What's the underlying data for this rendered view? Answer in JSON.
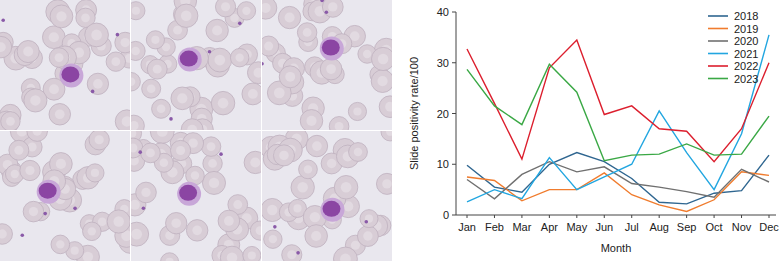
{
  "chart_data": {
    "type": "line",
    "x_label": "Month",
    "y_label": "Slide positivity rate/100",
    "categories": [
      "Jan",
      "Feb",
      "Mar",
      "Apr",
      "May",
      "Jun",
      "Jul",
      "Aug",
      "Sep",
      "Oct",
      "Nov",
      "Dec"
    ],
    "series": [
      {
        "name": "2018",
        "color": "#2f6690",
        "values": [
          9.8,
          5.5,
          4.5,
          10,
          12.3,
          10.5,
          7.2,
          2.5,
          2.2,
          4.3,
          4.8,
          11.8
        ]
      },
      {
        "name": "2019",
        "color": "#f07c2e",
        "values": [
          7.5,
          6.8,
          2.8,
          5,
          5,
          8.3,
          4,
          2,
          0.7,
          3,
          8.5,
          7.8
        ]
      },
      {
        "name": "2020",
        "color": "#707070",
        "values": [
          7,
          3.2,
          8,
          10.5,
          8.5,
          9.5,
          6.2,
          5.5,
          4.6,
          3.5,
          9,
          6.5
        ]
      },
      {
        "name": "2021",
        "color": "#22a6e0",
        "values": [
          2.6,
          5,
          3.2,
          11.3,
          5,
          7.5,
          10,
          20.5,
          12.3,
          5,
          16,
          35.5
        ]
      },
      {
        "name": "2022",
        "color": "#dc1f2e",
        "values": [
          32.7,
          22,
          11,
          29,
          34.5,
          19.8,
          21.5,
          17,
          16.5,
          10.5,
          17,
          30
        ]
      },
      {
        "name": "2023",
        "color": "#3aa845",
        "values": [
          28.7,
          21.5,
          17.8,
          29.7,
          24.2,
          10.7,
          11.8,
          12,
          14,
          11.8,
          12,
          19.5
        ]
      }
    ],
    "ylim": [
      0,
      40
    ],
    "yticks": [
      0,
      10,
      20,
      30,
      40
    ],
    "legend": "upper right",
    "grid": false
  }
}
